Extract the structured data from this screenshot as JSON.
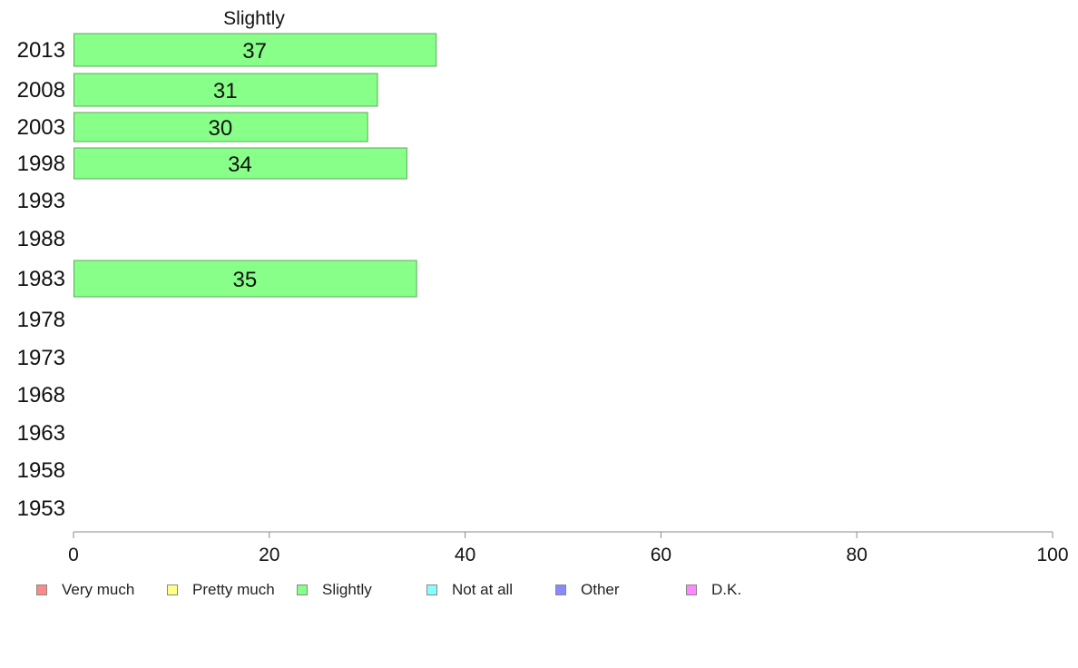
{
  "chart_data": {
    "type": "bar",
    "orientation": "horizontal",
    "title": "Slightly",
    "categories": [
      "2013",
      "2008",
      "2003",
      "1998",
      "1993",
      "1988",
      "1983",
      "1978",
      "1973",
      "1968",
      "1963",
      "1958",
      "1953"
    ],
    "series": [
      {
        "name": "Slightly",
        "values": [
          37,
          31,
          30,
          34,
          null,
          null,
          35,
          null,
          null,
          null,
          null,
          null,
          null
        ]
      }
    ],
    "data_labels": [
      "37",
      "31",
      "30",
      "34",
      "",
      "",
      "35",
      "",
      "",
      "",
      "",
      "",
      ""
    ],
    "xlim": [
      0,
      100
    ],
    "xticks": [
      0,
      20,
      40,
      60,
      80,
      100
    ],
    "xtick_labels": [
      "0",
      "20",
      "40",
      "60",
      "80",
      "100"
    ],
    "grid": false,
    "legend_position": "bottom",
    "bar_color": "#88ff88",
    "bar_edge_color": "#5aaa5a"
  },
  "legend": {
    "items": [
      {
        "label": "Very much",
        "color": "#ff8888"
      },
      {
        "label": "Pretty much",
        "color": "#ffff88"
      },
      {
        "label": "Slightly",
        "color": "#88ff88"
      },
      {
        "label": "Not at all",
        "color": "#88ffff"
      },
      {
        "label": "Other",
        "color": "#8888ff"
      },
      {
        "label": "D.K.",
        "color": "#ff88ff"
      }
    ]
  }
}
